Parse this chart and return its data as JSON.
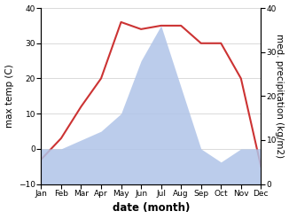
{
  "months": [
    "Jan",
    "Feb",
    "Mar",
    "Apr",
    "May",
    "Jun",
    "Jul",
    "Aug",
    "Sep",
    "Oct",
    "Nov",
    "Dec"
  ],
  "temperature": [
    -3,
    3,
    12,
    20,
    36,
    34,
    35,
    35,
    30,
    30,
    20,
    -5
  ],
  "precipitation": [
    8,
    8,
    10,
    12,
    16,
    28,
    36,
    22,
    8,
    5,
    8,
    8
  ],
  "temp_color": "#cc3333",
  "precip_color": "#b0c4e8",
  "temp_ylim": [
    -10,
    40
  ],
  "precip_ylim": [
    0,
    40
  ],
  "xlabel": "date (month)",
  "ylabel_left": "max temp (C)",
  "ylabel_right": "med. precipitation (kg/m2)",
  "bg_color": "#ffffff",
  "grid_color": "#cccccc",
  "label_fontsize": 7.5,
  "tick_fontsize": 6.5,
  "xlabel_fontsize": 8.5
}
